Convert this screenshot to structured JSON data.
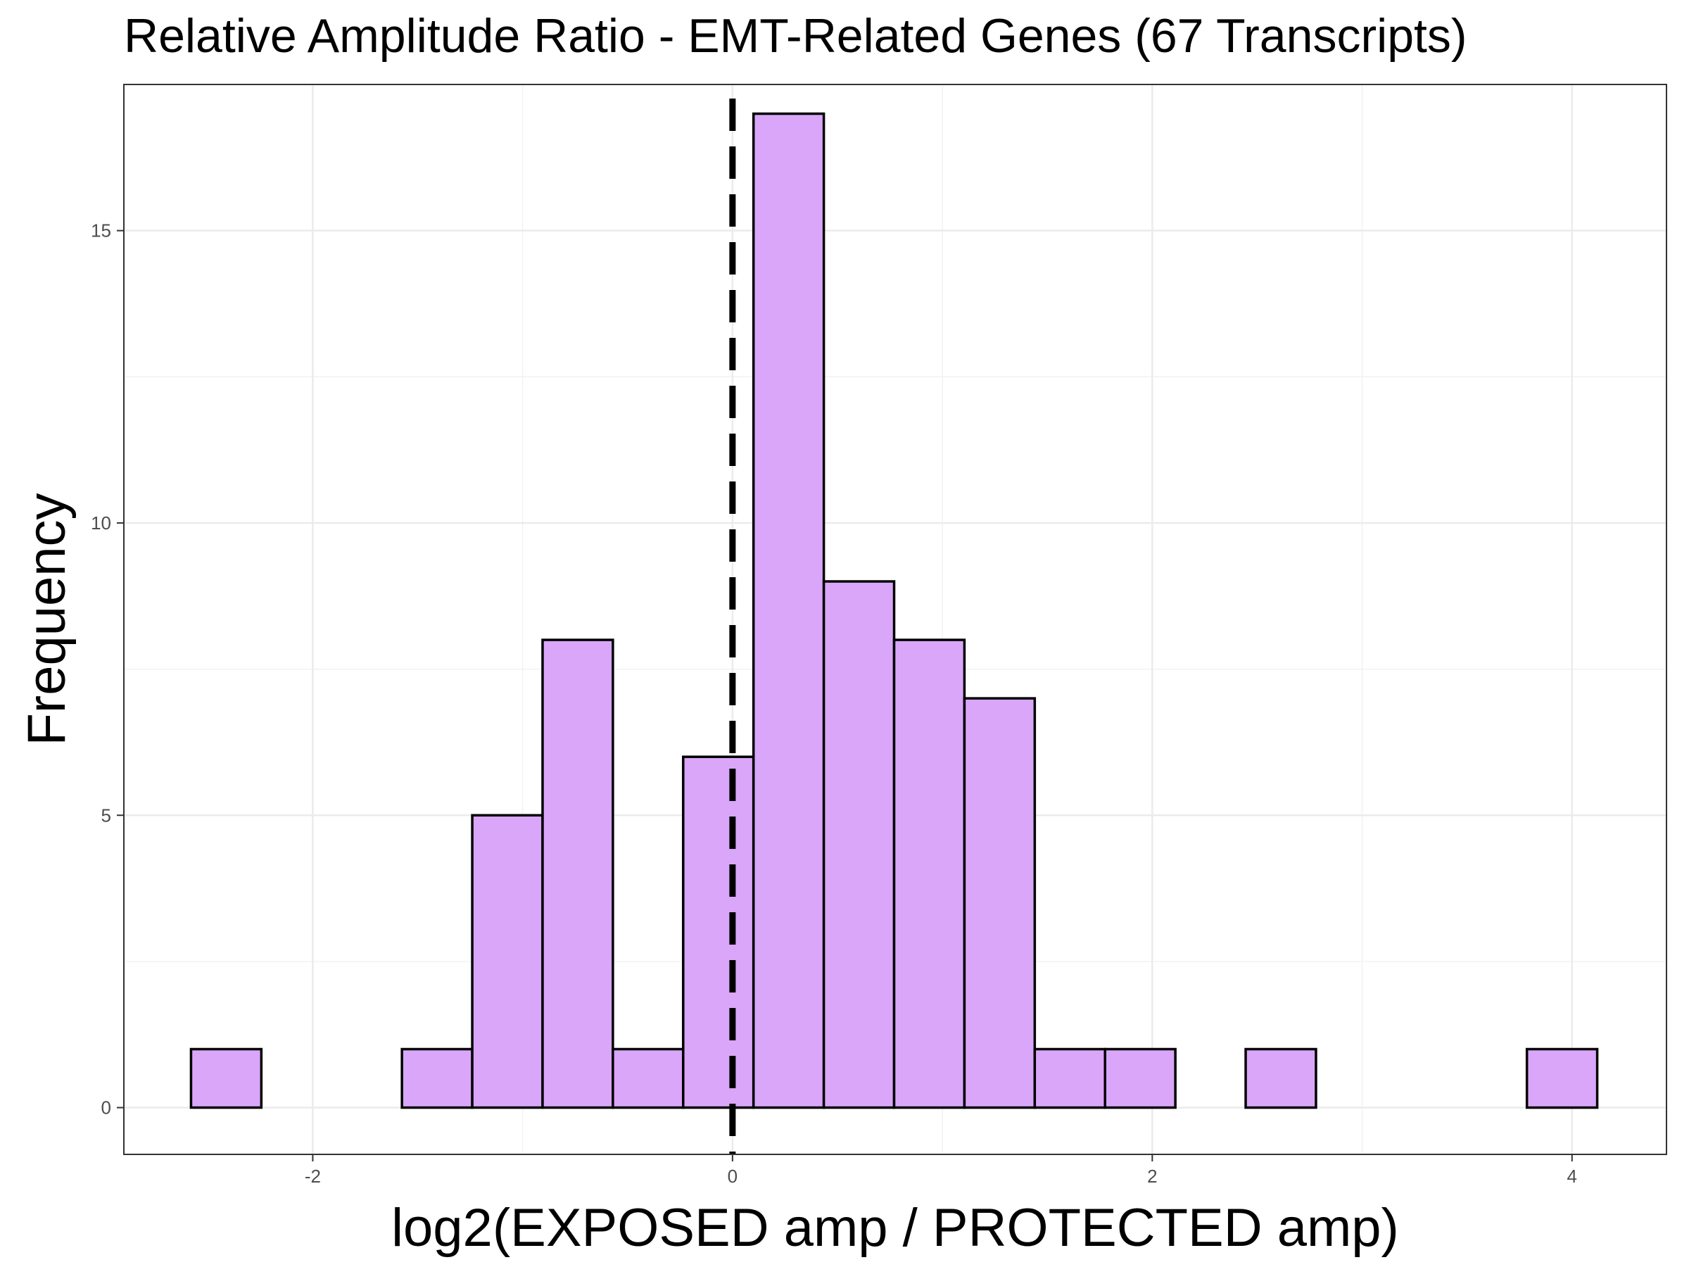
{
  "chart_data": {
    "type": "bar",
    "title": "Relative Amplitude Ratio - EMT-Related Genes (67 Transcripts)",
    "xlabel": "log2(EXPOSED amp / PROTECTED amp)",
    "ylabel": "Frequency",
    "xlim": [
      -2.9,
      4.45
    ],
    "ylim": [
      -0.8,
      17.5
    ],
    "x_ticks": [
      -2,
      0,
      2,
      4
    ],
    "y_ticks": [
      0,
      5,
      10,
      15
    ],
    "bin_width": 0.335,
    "bins": [
      {
        "start": -2.58,
        "end": -2.245,
        "count": 1
      },
      {
        "start": -2.245,
        "end": -1.91,
        "count": 0
      },
      {
        "start": -1.91,
        "end": -1.575,
        "count": 0
      },
      {
        "start": -1.575,
        "end": -1.24,
        "count": 1
      },
      {
        "start": -1.24,
        "end": -0.905,
        "count": 5
      },
      {
        "start": -0.905,
        "end": -0.57,
        "count": 8
      },
      {
        "start": -0.57,
        "end": -0.235,
        "count": 1
      },
      {
        "start": -0.235,
        "end": 0.1,
        "count": 6
      },
      {
        "start": 0.1,
        "end": 0.435,
        "count": 17
      },
      {
        "start": 0.435,
        "end": 0.77,
        "count": 9
      },
      {
        "start": 0.77,
        "end": 1.105,
        "count": 8
      },
      {
        "start": 1.105,
        "end": 1.44,
        "count": 7
      },
      {
        "start": 1.44,
        "end": 1.775,
        "count": 1
      },
      {
        "start": 1.775,
        "end": 2.11,
        "count": 1
      },
      {
        "start": 2.11,
        "end": 2.445,
        "count": 0
      },
      {
        "start": 2.445,
        "end": 2.78,
        "count": 1
      },
      {
        "start": 2.78,
        "end": 3.115,
        "count": 0
      },
      {
        "start": 3.115,
        "end": 3.45,
        "count": 0
      },
      {
        "start": 3.45,
        "end": 3.785,
        "count": 0
      },
      {
        "start": 3.785,
        "end": 4.12,
        "count": 1
      }
    ],
    "reference_line": {
      "x": 0,
      "style": "dashed",
      "color": "#000000"
    },
    "bar_fill": "#daa6f9",
    "bar_stroke": "#000000",
    "grid": true,
    "legend": "none"
  }
}
